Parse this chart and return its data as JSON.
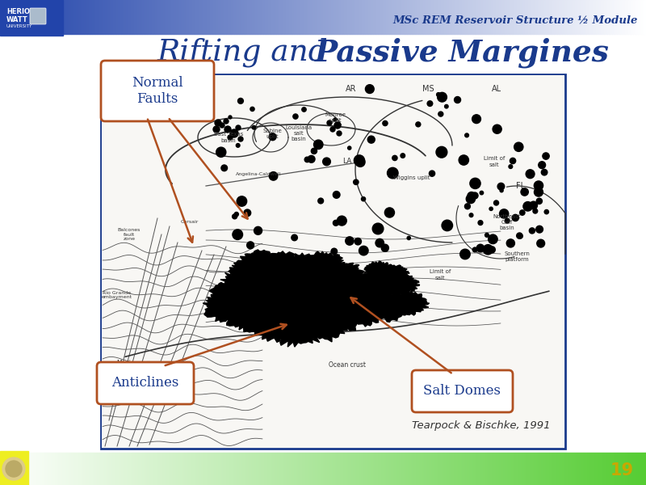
{
  "title_normal": "Rifting and ",
  "title_bold": "Passive Margines",
  "subtitle": "MSc REM Reservoir Structure ½ Module",
  "page_number": "19",
  "citation": "Tearpock & Bischke, 1991",
  "labels": {
    "normal_faults": "Normal\nFaults",
    "salt_domes": "Salt Domes",
    "anticlines": "Anticlines"
  },
  "title_color": "#1a3a8c",
  "subtitle_color": "#1a3a8c",
  "label_text_color": "#1a3a8c",
  "label_box_fill": "#ffffff",
  "label_box_edge": "#b05020",
  "arrow_color": "#b05020",
  "image_box_border": "#1a3a8c",
  "page_num_color": "#c8a800",
  "header_blue": "#2244aa",
  "geo_line_color": "#555555",
  "geo_dark": "#333333"
}
